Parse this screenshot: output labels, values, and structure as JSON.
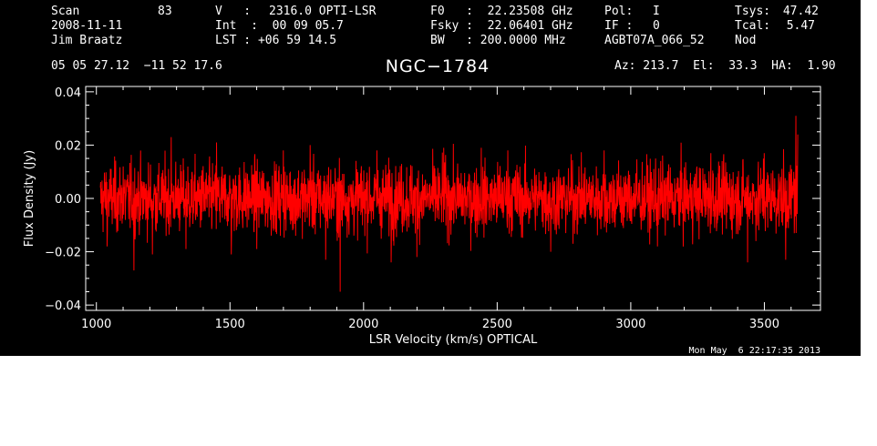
{
  "header": {
    "scan_label": "Scan",
    "scan_value": "83",
    "date": "2008-11-11",
    "observer": "Jim Braatz",
    "v_label": "V   :",
    "v_value": "2316.0 OPTI-LSR",
    "int_text": "Int  :  00 09 05.7",
    "lst_text": "LST : +06 59 14.5",
    "f0_text": "F0   :  22.23508 GHz",
    "fsky_text": "Fsky :  22.06401 GHz",
    "bw_text": "BW   : 200.0000 MHz",
    "pol_label": "Pol:",
    "pol_value": "I",
    "if_label": "IF :",
    "if_value": "0",
    "project": "AGBT07A_066_52",
    "tsys_label": "Tsys:",
    "tsys_value": "47.42",
    "tcal_label": "Tcal:",
    "tcal_value": "5.47",
    "mode": "Nod",
    "coords": "05 05 27.12  −11 52 17.6",
    "source": "NGC−1784",
    "az_el_ha": "Az: 213.7  El:  33.3  HA:  1.90"
  },
  "footer": {
    "timestamp": "Mon May  6 22:17:35 2013"
  },
  "colors": {
    "background": "#000000",
    "axes": "#ffffff",
    "trace": "#ff0000"
  },
  "chart_data": {
    "type": "line",
    "title": "NGC−1784",
    "xlabel": "LSR Velocity (km/s) OPTICAL",
    "ylabel": "Flux Density (Jy)",
    "xlim": [
      960,
      3710
    ],
    "ylim": [
      -0.042,
      0.042
    ],
    "x_ticks": [
      1000,
      1500,
      2000,
      2500,
      3000,
      3500
    ],
    "x_tick_labels": [
      "1000",
      "1500",
      "2000",
      "2500",
      "3000",
      "3500"
    ],
    "y_ticks": [
      -0.04,
      -0.02,
      0.0,
      0.02,
      0.04
    ],
    "y_tick_labels": [
      "−0.04",
      "−0.02",
      "0.00",
      "0.02",
      "0.04"
    ],
    "grid": false,
    "series": [
      {
        "color": "#ff0000",
        "x_start": 1015,
        "x_end": 3625,
        "baseline": 0.0,
        "noise_rms": 0.0065,
        "points": [
          {
            "x": 1015,
            "y": 0.004
          },
          {
            "x": 1040,
            "y": -0.018
          },
          {
            "x": 1100,
            "y": 0.012
          },
          {
            "x": 1140,
            "y": -0.027
          },
          {
            "x": 1210,
            "y": -0.021
          },
          {
            "x": 1280,
            "y": 0.023
          },
          {
            "x": 1335,
            "y": -0.019
          },
          {
            "x": 1450,
            "y": 0.021
          },
          {
            "x": 1505,
            "y": -0.021
          },
          {
            "x": 1600,
            "y": -0.019
          },
          {
            "x": 1700,
            "y": 0.018
          },
          {
            "x": 1800,
            "y": 0.02
          },
          {
            "x": 1858,
            "y": -0.023
          },
          {
            "x": 1912,
            "y": -0.035
          },
          {
            "x": 2050,
            "y": 0.018
          },
          {
            "x": 2103,
            "y": -0.024
          },
          {
            "x": 2200,
            "y": -0.022
          },
          {
            "x": 2300,
            "y": 0.019
          },
          {
            "x": 2440,
            "y": 0.019
          },
          {
            "x": 2540,
            "y": 0.018
          },
          {
            "x": 2700,
            "y": -0.02
          },
          {
            "x": 2900,
            "y": 0.018
          },
          {
            "x": 3100,
            "y": -0.018
          },
          {
            "x": 3300,
            "y": 0.017
          },
          {
            "x": 3437,
            "y": -0.024
          },
          {
            "x": 3500,
            "y": 0.017
          },
          {
            "x": 3580,
            "y": -0.023
          },
          {
            "x": 3610,
            "y": 0.01
          },
          {
            "x": 3618,
            "y": 0.031
          },
          {
            "x": 3625,
            "y": 0.024
          }
        ]
      }
    ]
  }
}
